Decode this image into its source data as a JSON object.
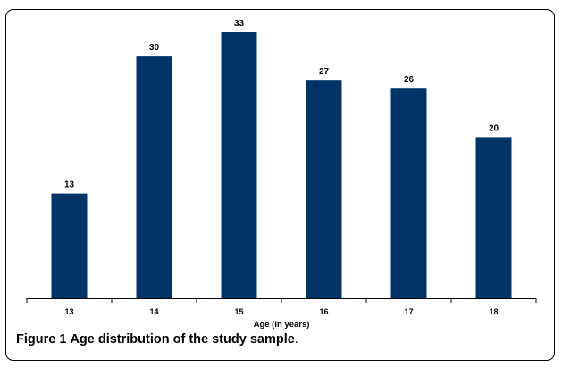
{
  "chart_data": {
    "type": "bar",
    "categories": [
      "13",
      "14",
      "15",
      "16",
      "17",
      "18"
    ],
    "values": [
      13,
      30,
      33,
      27,
      26,
      20
    ],
    "data_labels": [
      "13",
      "30",
      "33",
      "27",
      "26",
      "20"
    ],
    "xlabel": "Age (in years)",
    "ylabel": "",
    "ylim": [
      0,
      35
    ],
    "grid": false,
    "legend": "none",
    "bar_color": "#003366"
  },
  "caption": {
    "number": "Figure 1",
    "text": "Age distribution of the study sample",
    "terminator": "."
  }
}
